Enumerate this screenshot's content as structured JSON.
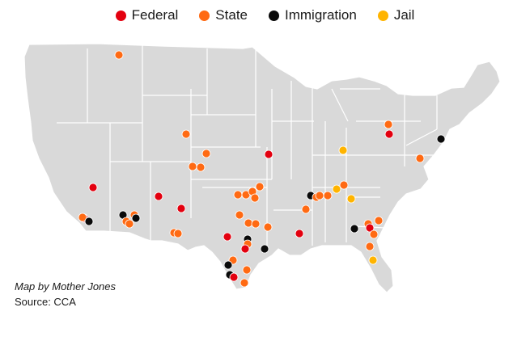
{
  "legend": {
    "items": [
      {
        "label": "Federal",
        "color": "#e3000f"
      },
      {
        "label": "State",
        "color": "#ff6a13"
      },
      {
        "label": "Immigration",
        "color": "#0a0a0a"
      },
      {
        "label": "Jail",
        "color": "#ffb400"
      }
    ]
  },
  "credits": {
    "map_by": "Map by Mother Jones",
    "source": "Source: CCA"
  },
  "map": {
    "land_color": "#d9d9d9",
    "border_color": "#ffffff",
    "marker_stroke": "#ffffff"
  }
}
